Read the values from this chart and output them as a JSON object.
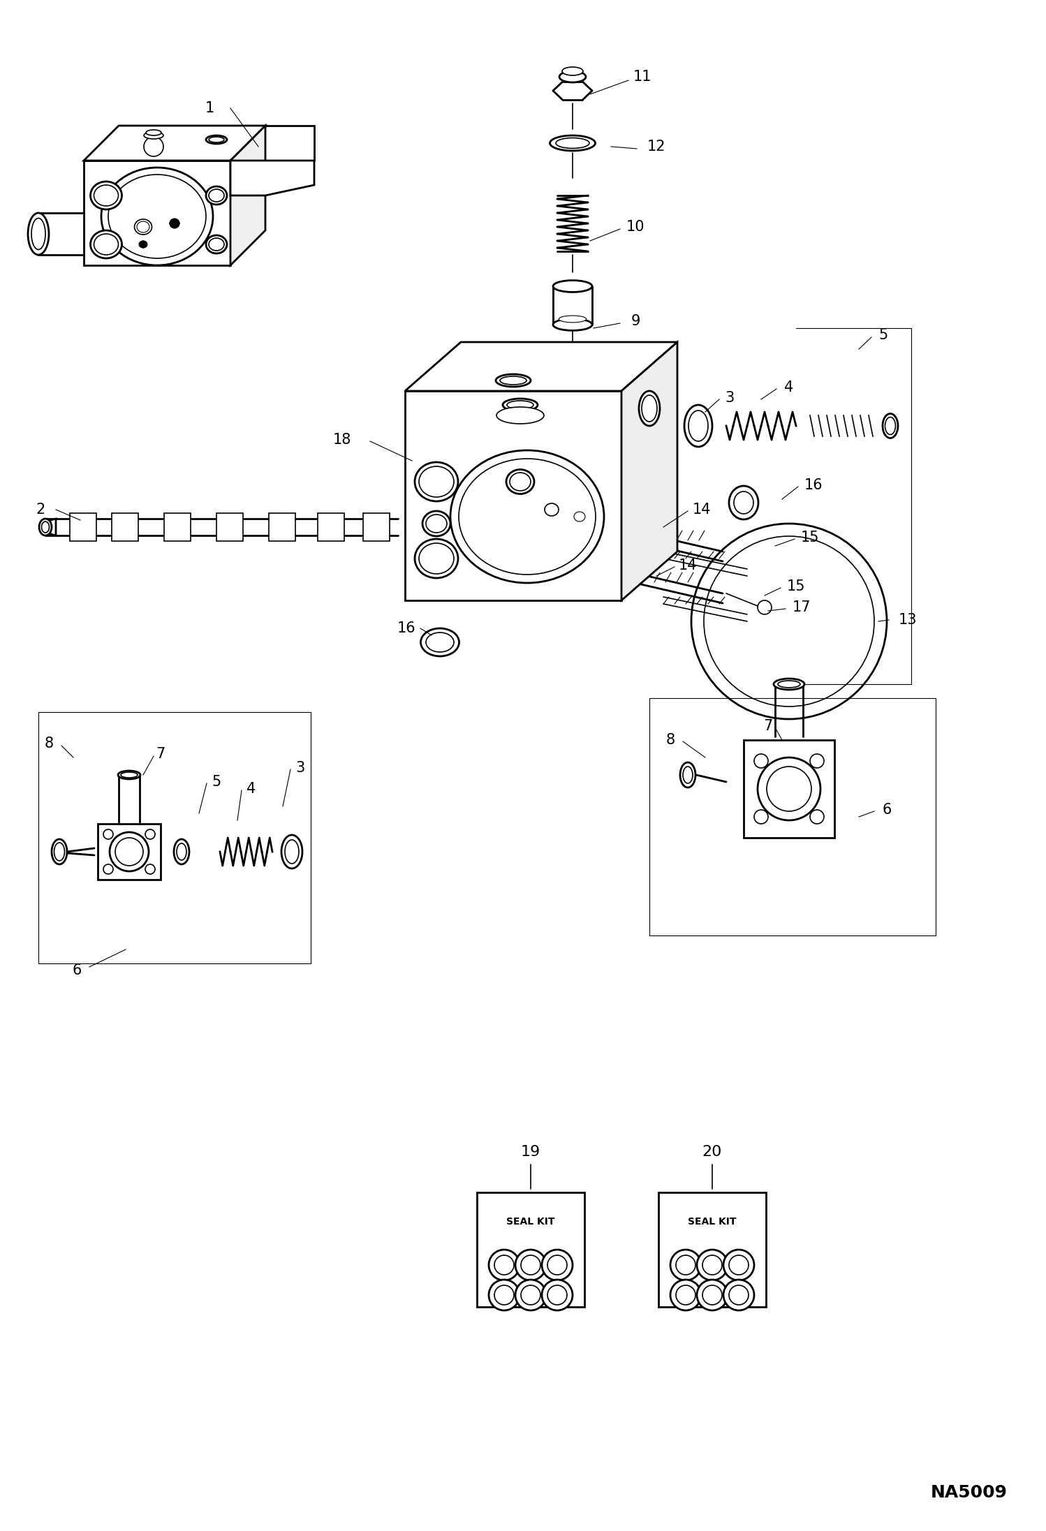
{
  "bg_color": "#ffffff",
  "line_color": "#000000",
  "fig_width": 14.98,
  "fig_height": 21.93,
  "dpi": 100,
  "watermark": "NA5009"
}
